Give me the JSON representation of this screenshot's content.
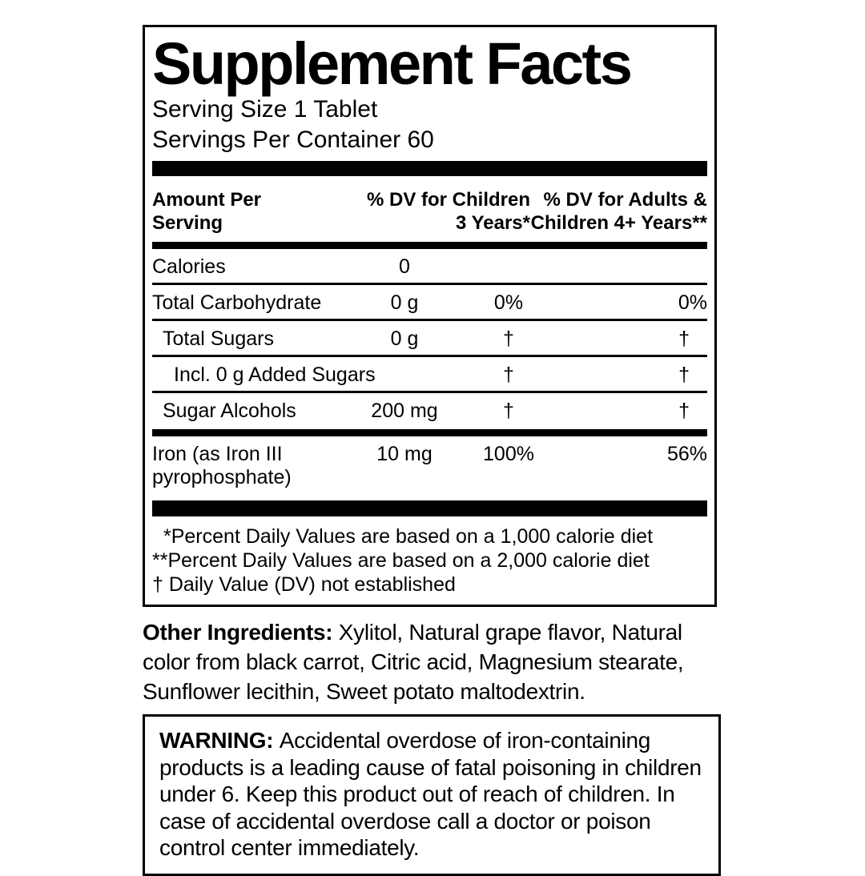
{
  "panel": {
    "title": "Supplement Facts",
    "serving_size": "Serving Size 1 Tablet",
    "servings_per_container": "Servings Per Container 60",
    "header": {
      "amount": [
        "Amount Per",
        "Serving"
      ],
      "dv_children": [
        "% DV for Children",
        "3 Years*"
      ],
      "dv_adults": [
        "% DV for Adults &",
        "Children 4+ Years**"
      ]
    },
    "rows": [
      {
        "name": "Calories",
        "amount": "0",
        "dv_children": "",
        "dv_adults": ""
      },
      {
        "name": "Total Carbohydrate",
        "amount": "0 g",
        "dv_children": "0%",
        "dv_adults": "0%"
      },
      {
        "name": "Total Sugars",
        "amount": "0 g",
        "dv_children": "†",
        "dv_adults": "†"
      },
      {
        "name": "Incl. 0 g Added Sugars",
        "amount": "",
        "dv_children": "†",
        "dv_adults": "†"
      },
      {
        "name": "Sugar Alcohols",
        "amount": "200 mg",
        "dv_children": "†",
        "dv_adults": "†"
      },
      {
        "name": "Iron (as Iron III pyrophosphate)",
        "amount": "10 mg",
        "dv_children": "100%",
        "dv_adults": "56%"
      }
    ],
    "footnotes": [
      "*Percent Daily Values are based on a 1,000 calorie diet",
      "**Percent Daily Values are based on a 2,000 calorie diet",
      "† Daily Value (DV) not established"
    ]
  },
  "other_ingredients": {
    "label": "Other Ingredients:",
    "text": "Xylitol, Natural grape flavor, Natural color from black carrot, Citric acid, Magnesium stearate, Sunflower lecithin, Sweet potato maltodextrin."
  },
  "warning": {
    "label": "WARNING:",
    "text": "Accidental overdose of iron-containing products is a leading cause of fatal poisoning in children under 6. Keep this product out of reach of children. In case of accidental overdose call a doctor or poison control center immediately."
  },
  "colors": {
    "text": "#000000",
    "background": "#ffffff"
  }
}
